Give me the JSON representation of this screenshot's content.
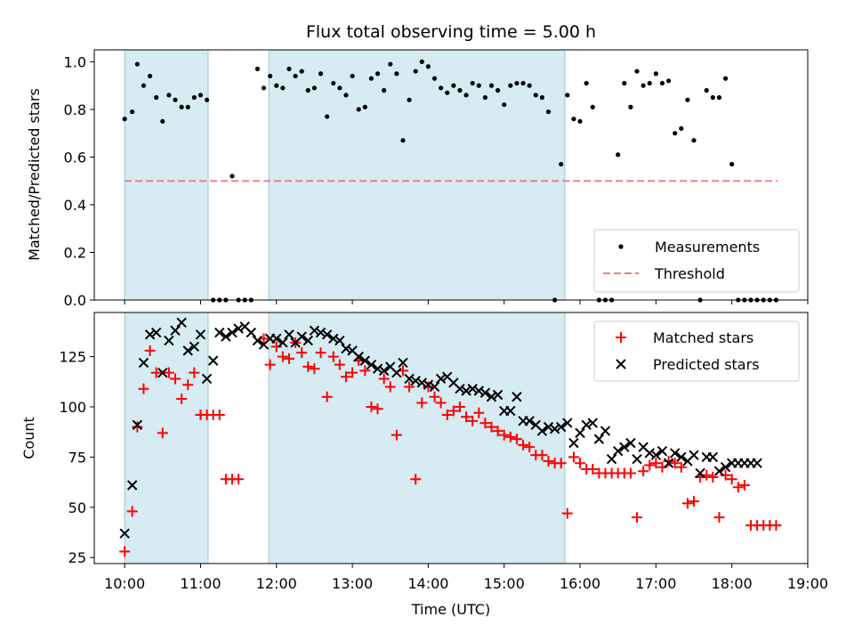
{
  "chart_data": [
    {
      "type": "scatter",
      "title": "Flux total observing time = 5.00 h",
      "ylabel": "Matched/Predicted stars",
      "ylim": [
        0,
        1.05
      ],
      "yticks": [
        "0.0",
        "0.2",
        "0.4",
        "0.6",
        "0.8",
        "1.0"
      ],
      "ytick_values": [
        0,
        0.2,
        0.4,
        0.6,
        0.8,
        1.0
      ],
      "legend_placement": "lower-right",
      "shaded_intervals": [
        [
          "10:00",
          "11:06"
        ],
        [
          "11:54",
          "15:48"
        ]
      ],
      "threshold": {
        "name": "Threshold",
        "value": 0.5,
        "x_range": [
          "10:00",
          "18:36"
        ],
        "color": "#f08080"
      },
      "series": [
        {
          "name": "Measurements",
          "color": "#000000",
          "x": [
            "10:00",
            "10:06",
            "10:10",
            "10:15",
            "10:20",
            "10:25",
            "10:30",
            "10:35",
            "10:40",
            "10:45",
            "10:50",
            "10:55",
            "11:00",
            "11:05",
            "11:10",
            "11:15",
            "11:20",
            "11:25",
            "11:30",
            "11:35",
            "11:40",
            "11:45",
            "11:50",
            "11:55",
            "12:00",
            "12:05",
            "12:10",
            "12:15",
            "12:20",
            "12:25",
            "12:30",
            "12:35",
            "12:40",
            "12:45",
            "12:50",
            "12:55",
            "13:00",
            "13:05",
            "13:10",
            "13:15",
            "13:20",
            "13:25",
            "13:30",
            "13:35",
            "13:40",
            "13:45",
            "13:50",
            "13:55",
            "14:00",
            "14:05",
            "14:10",
            "14:15",
            "14:20",
            "14:25",
            "14:30",
            "14:35",
            "14:40",
            "14:45",
            "14:50",
            "14:55",
            "15:00",
            "15:05",
            "15:10",
            "15:15",
            "15:20",
            "15:25",
            "15:30",
            "15:35",
            "15:40",
            "15:45",
            "15:50",
            "15:55",
            "16:00",
            "16:05",
            "16:10",
            "16:15",
            "16:20",
            "16:25",
            "16:30",
            "16:35",
            "16:40",
            "16:45",
            "16:50",
            "16:55",
            "17:00",
            "17:05",
            "17:10",
            "17:15",
            "17:20",
            "17:25",
            "17:30",
            "17:35",
            "17:40",
            "17:45",
            "17:50",
            "17:55",
            "18:00",
            "18:05",
            "18:10",
            "18:15",
            "18:20",
            "18:25",
            "18:30",
            "18:35"
          ],
          "y": [
            0.76,
            0.79,
            0.99,
            0.9,
            0.94,
            0.85,
            0.75,
            0.86,
            0.84,
            0.81,
            0.81,
            0.85,
            0.86,
            0.84,
            0.0,
            0.0,
            0.0,
            0.52,
            0.0,
            0.0,
            0.0,
            0.97,
            0.89,
            0.94,
            0.9,
            0.89,
            0.97,
            0.94,
            0.96,
            0.88,
            0.89,
            0.95,
            0.77,
            0.91,
            0.89,
            0.86,
            0.94,
            0.8,
            0.81,
            0.93,
            0.95,
            0.88,
            0.99,
            0.95,
            0.67,
            0.84,
            0.96,
            1.0,
            0.98,
            0.93,
            0.89,
            0.87,
            0.9,
            0.88,
            0.86,
            0.91,
            0.9,
            0.85,
            0.9,
            0.88,
            0.82,
            0.9,
            0.91,
            0.91,
            0.9,
            0.86,
            0.85,
            0.79,
            0.0,
            0.57,
            0.86,
            0.76,
            0.75,
            0.91,
            0.81,
            0.0,
            0.0,
            0.0,
            0.61,
            0.91,
            0.81,
            0.96,
            0.9,
            0.91,
            0.95,
            0.91,
            0.92,
            0.7,
            0.72,
            0.84,
            0.67,
            0.0,
            0.88,
            0.85,
            0.85,
            0.93,
            0.57,
            0.0,
            0.0,
            0.0,
            0.0,
            0.0,
            0.0,
            0.0
          ]
        }
      ]
    },
    {
      "type": "scatter",
      "xlabel": "Time (UTC)",
      "ylabel": "Count",
      "ylim": [
        22,
        147
      ],
      "yticks": [
        "25",
        "50",
        "75",
        "100",
        "125"
      ],
      "ytick_values": [
        25,
        50,
        75,
        100,
        125
      ],
      "xlim": [
        "09:36",
        "19:00"
      ],
      "xticks": [
        "10:00",
        "11:00",
        "12:00",
        "13:00",
        "14:00",
        "15:00",
        "16:00",
        "17:00",
        "18:00",
        "19:00"
      ],
      "legend_placement": "upper-right",
      "shaded_intervals": [
        [
          "10:00",
          "11:06"
        ],
        [
          "11:54",
          "15:48"
        ]
      ],
      "series": [
        {
          "name": "Matched stars",
          "marker": "+",
          "color": "#ff0000",
          "x": [
            "10:00",
            "10:06",
            "10:10",
            "10:15",
            "10:20",
            "10:25",
            "10:30",
            "10:35",
            "10:40",
            "10:45",
            "10:50",
            "10:55",
            "11:00",
            "11:05",
            "11:10",
            "11:15",
            "11:20",
            "11:25",
            "11:30",
            "11:50",
            "11:55",
            "12:00",
            "12:05",
            "12:10",
            "12:15",
            "12:20",
            "12:25",
            "12:30",
            "12:35",
            "12:40",
            "12:45",
            "12:50",
            "12:55",
            "13:00",
            "13:05",
            "13:10",
            "13:15",
            "13:20",
            "13:25",
            "13:30",
            "13:35",
            "13:40",
            "13:45",
            "13:50",
            "13:55",
            "14:00",
            "14:05",
            "14:10",
            "14:15",
            "14:20",
            "14:25",
            "14:30",
            "14:35",
            "14:40",
            "14:45",
            "14:50",
            "14:55",
            "15:00",
            "15:05",
            "15:10",
            "15:15",
            "15:20",
            "15:25",
            "15:30",
            "15:35",
            "15:40",
            "15:45",
            "15:50",
            "15:55",
            "16:00",
            "16:05",
            "16:10",
            "16:15",
            "16:20",
            "16:25",
            "16:30",
            "16:35",
            "16:40",
            "16:45",
            "16:50",
            "16:55",
            "17:00",
            "17:05",
            "17:10",
            "17:15",
            "17:20",
            "17:25",
            "17:30",
            "17:35",
            "17:40",
            "17:45",
            "17:50",
            "17:55",
            "18:00",
            "18:05",
            "18:10",
            "18:15",
            "18:20",
            "18:25",
            "18:30",
            "18:35"
          ],
          "y": [
            28,
            48,
            90,
            109,
            128,
            117,
            87,
            117,
            114,
            104,
            111,
            117,
            96,
            96,
            96,
            96,
            64,
            64,
            64,
            134,
            121,
            130,
            125,
            124,
            132,
            127,
            120,
            119,
            127,
            105,
            125,
            121,
            115,
            117,
            123,
            118,
            100,
            99,
            114,
            110,
            86,
            118,
            110,
            64,
            102,
            110,
            105,
            102,
            96,
            98,
            100,
            95,
            93,
            97,
            92,
            90,
            88,
            86,
            85,
            84,
            81,
            80,
            76,
            76,
            73,
            72,
            72,
            47,
            75,
            72,
            69,
            69,
            67,
            67,
            67,
            67,
            67,
            67,
            45,
            68,
            71,
            72,
            70,
            73,
            72,
            70,
            52,
            53,
            65,
            66,
            65,
            45,
            66,
            64,
            60,
            61,
            41,
            41,
            41,
            41,
            41
          ]
        },
        {
          "name": "Predicted stars",
          "marker": "x",
          "color": "#000000",
          "x": [
            "10:00",
            "10:06",
            "10:10",
            "10:15",
            "10:20",
            "10:25",
            "10:30",
            "10:35",
            "10:40",
            "10:45",
            "10:50",
            "10:55",
            "11:00",
            "11:05",
            "11:10",
            "11:15",
            "11:20",
            "11:25",
            "11:30",
            "11:35",
            "11:40",
            "11:45",
            "11:50",
            "11:55",
            "12:00",
            "12:05",
            "12:10",
            "12:15",
            "12:20",
            "12:25",
            "12:30",
            "12:35",
            "12:40",
            "12:45",
            "12:50",
            "12:55",
            "13:00",
            "13:05",
            "13:10",
            "13:15",
            "13:20",
            "13:25",
            "13:30",
            "13:35",
            "13:40",
            "13:45",
            "13:50",
            "13:55",
            "14:00",
            "14:05",
            "14:10",
            "14:15",
            "14:20",
            "14:25",
            "14:30",
            "14:35",
            "14:40",
            "14:45",
            "14:50",
            "14:55",
            "15:00",
            "15:05",
            "15:10",
            "15:15",
            "15:20",
            "15:25",
            "15:30",
            "15:35",
            "15:40",
            "15:45",
            "15:50",
            "15:55",
            "16:00",
            "16:05",
            "16:10",
            "16:15",
            "16:20",
            "16:25",
            "16:30",
            "16:35",
            "16:40",
            "16:45",
            "16:50",
            "16:55",
            "17:00",
            "17:05",
            "17:10",
            "17:15",
            "17:20",
            "17:25",
            "17:30",
            "17:35",
            "17:40",
            "17:45",
            "17:50",
            "17:55",
            "18:00",
            "18:05",
            "18:10",
            "18:15",
            "18:20"
          ],
          "y": [
            37,
            61,
            91,
            122,
            136,
            137,
            117,
            133,
            138,
            142,
            128,
            130,
            136,
            114,
            123,
            137,
            135,
            137,
            139,
            140,
            137,
            133,
            131,
            134,
            134,
            132,
            136,
            132,
            135,
            133,
            138,
            137,
            136,
            134,
            133,
            129,
            128,
            125,
            123,
            121,
            119,
            118,
            120,
            117,
            122,
            114,
            113,
            112,
            111,
            110,
            114,
            115,
            112,
            109,
            108,
            109,
            108,
            107,
            105,
            106,
            98,
            98,
            105,
            93,
            93,
            91,
            88,
            90,
            89,
            90,
            92,
            82,
            87,
            91,
            92,
            84,
            88,
            74,
            78,
            80,
            82,
            74,
            80,
            77,
            76,
            78,
            72,
            77,
            75,
            73,
            76,
            67,
            75,
            75,
            68,
            70,
            72,
            72,
            72,
            72,
            72
          ]
        }
      ]
    }
  ]
}
